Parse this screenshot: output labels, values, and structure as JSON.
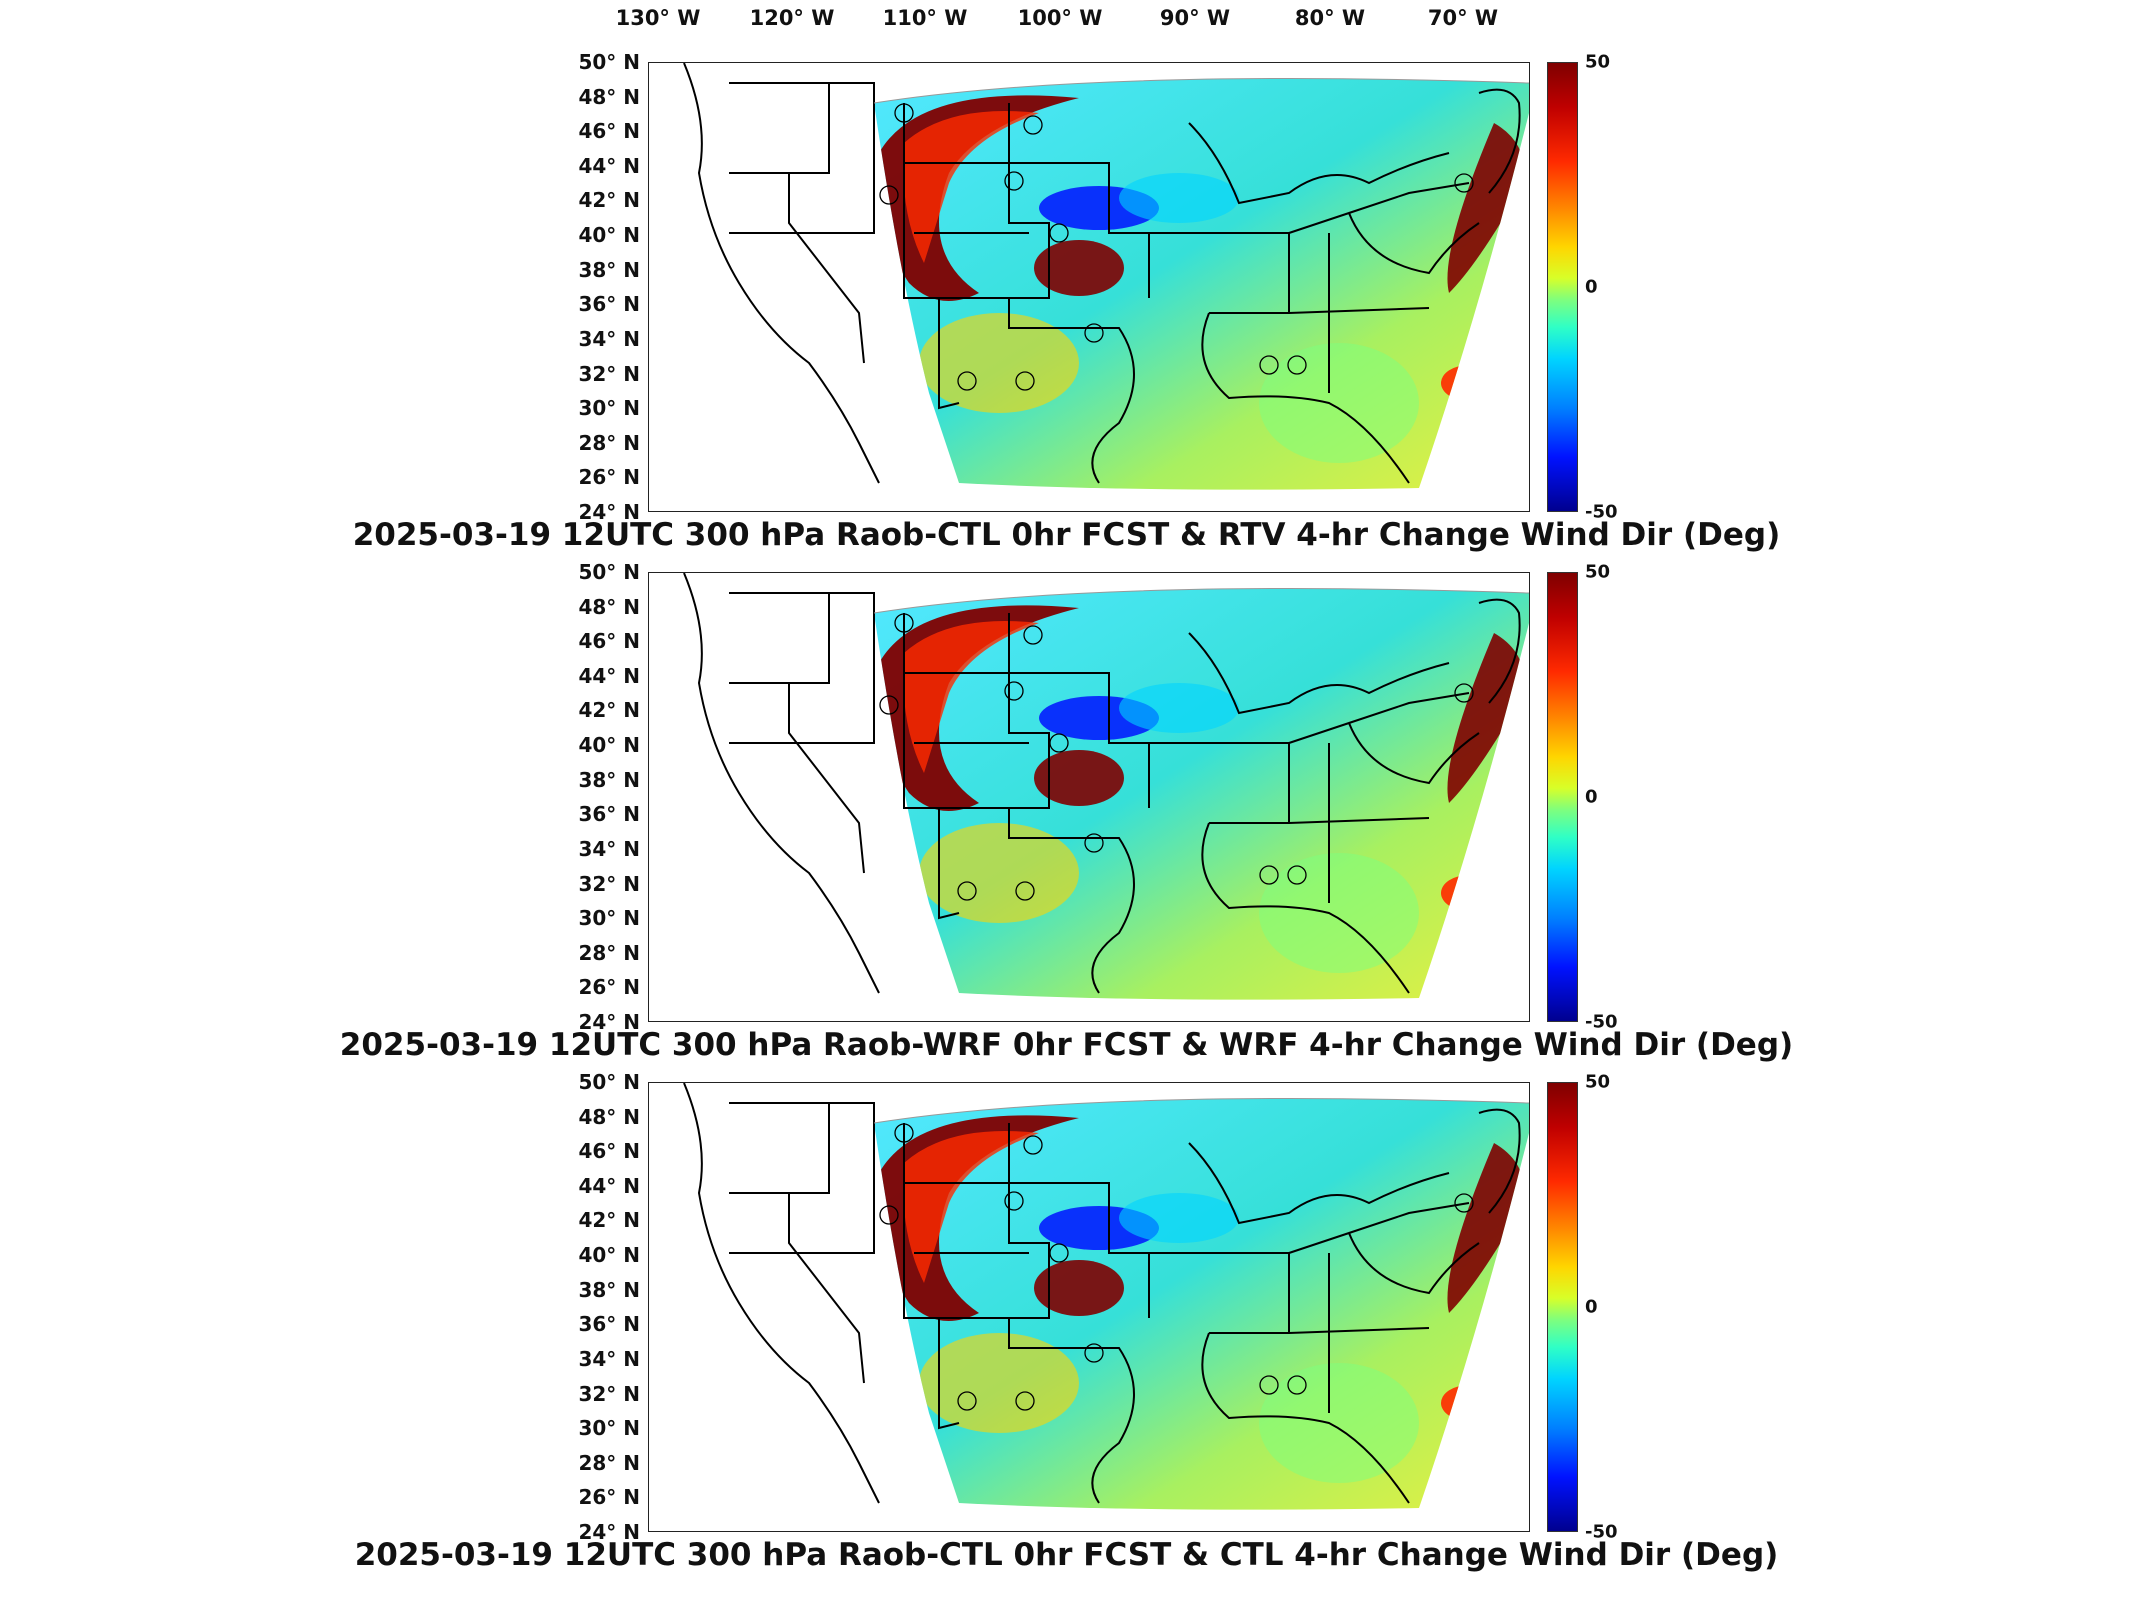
{
  "longitude_labels": [
    "130° W",
    "120° W",
    "110° W",
    "100° W",
    "90° W",
    "80° W",
    "70° W"
  ],
  "latitude_labels": [
    "50° N",
    "48° N",
    "46° N",
    "44° N",
    "42° N",
    "40° N",
    "38° N",
    "36° N",
    "34° N",
    "32° N",
    "30° N",
    "28° N",
    "26° N",
    "24° N"
  ],
  "colorbar": {
    "max_label": "50",
    "mid_label": "0",
    "min_label": "-50",
    "colors": [
      "#7f0000",
      "#ff2a00",
      "#ffd500",
      "#7cff80",
      "#00d4ff",
      "#0012ff",
      "#00008f"
    ]
  },
  "panels": [
    {
      "title": "2025-03-19 12UTC 300 hPa Raob-CTL 0hr FCST & RTV 4-hr Change Wind Dir (Deg)"
    },
    {
      "title": "2025-03-19 12UTC 300 hPa Raob-WRF 0hr FCST & WRF 4-hr Change Wind Dir (Deg)"
    },
    {
      "title": "2025-03-19 12UTC 300 hPa Raob-CTL 0hr FCST & CTL 4-hr Change Wind Dir (Deg)"
    }
  ]
}
